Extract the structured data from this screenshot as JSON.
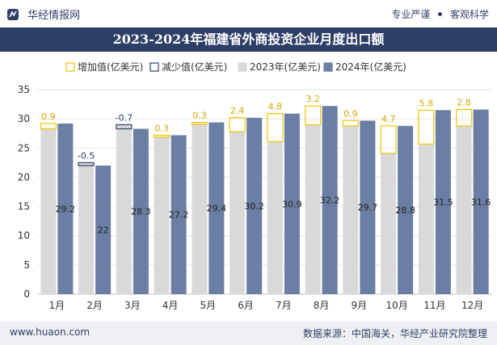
{
  "header": {
    "brand": "华经情报网",
    "tags": [
      "专业严谨",
      "客观科学"
    ]
  },
  "title": "2023-2024年福建省外商投资企业月度出口额",
  "footer": {
    "site": "www.huaon.com",
    "source": "数据来源：中国海关，华经产业研究院整理"
  },
  "colors": {
    "bar2023": "#d9d9d9",
    "bar2024": "#6b7ea3",
    "increase": "#f2c500",
    "decrease": "#2e3f66",
    "titlebar": "#2e3f66"
  },
  "chart_data": {
    "type": "bar",
    "title": "2023-2024年福建省外商投资企业月度出口额",
    "categories": [
      "1月",
      "2月",
      "3月",
      "4月",
      "5月",
      "6月",
      "7月",
      "8月",
      "9月",
      "10月",
      "11月",
      "12月"
    ],
    "series": [
      {
        "name": "2023年(亿美元)",
        "values": [
          28.3,
          22.5,
          29.0,
          26.9,
          29.1,
          27.8,
          26.1,
          29.0,
          28.8,
          24.1,
          25.7,
          28.8
        ]
      },
      {
        "name": "2024年(亿美元)",
        "values": [
          29.2,
          22,
          28.3,
          27.2,
          29.4,
          30.2,
          30.9,
          32.2,
          29.7,
          28.8,
          31.5,
          31.6
        ]
      }
    ],
    "change": [
      {
        "label": "0.9",
        "direction": "增加"
      },
      {
        "label": "-0.5",
        "direction": "减少"
      },
      {
        "label": "-0.7",
        "direction": "减少"
      },
      {
        "label": "0.3",
        "direction": "增加"
      },
      {
        "label": "0.3",
        "direction": "增加"
      },
      {
        "label": "2.4",
        "direction": "增加"
      },
      {
        "label": "4.8",
        "direction": "增加"
      },
      {
        "label": "3.2",
        "direction": "增加"
      },
      {
        "label": "0.9",
        "direction": "增加"
      },
      {
        "label": "4.7",
        "direction": "增加"
      },
      {
        "label": "5.8",
        "direction": "增加"
      },
      {
        "label": "2.8",
        "direction": "增加"
      }
    ],
    "legend": [
      "增加值(亿美元)",
      "减少值(亿美元)",
      "2023年(亿美元)",
      "2024年(亿美元)"
    ],
    "yticks": [
      0,
      5,
      10,
      15,
      20,
      25,
      30,
      35
    ],
    "ylim": [
      0,
      35
    ],
    "legend_position": "top-center"
  }
}
